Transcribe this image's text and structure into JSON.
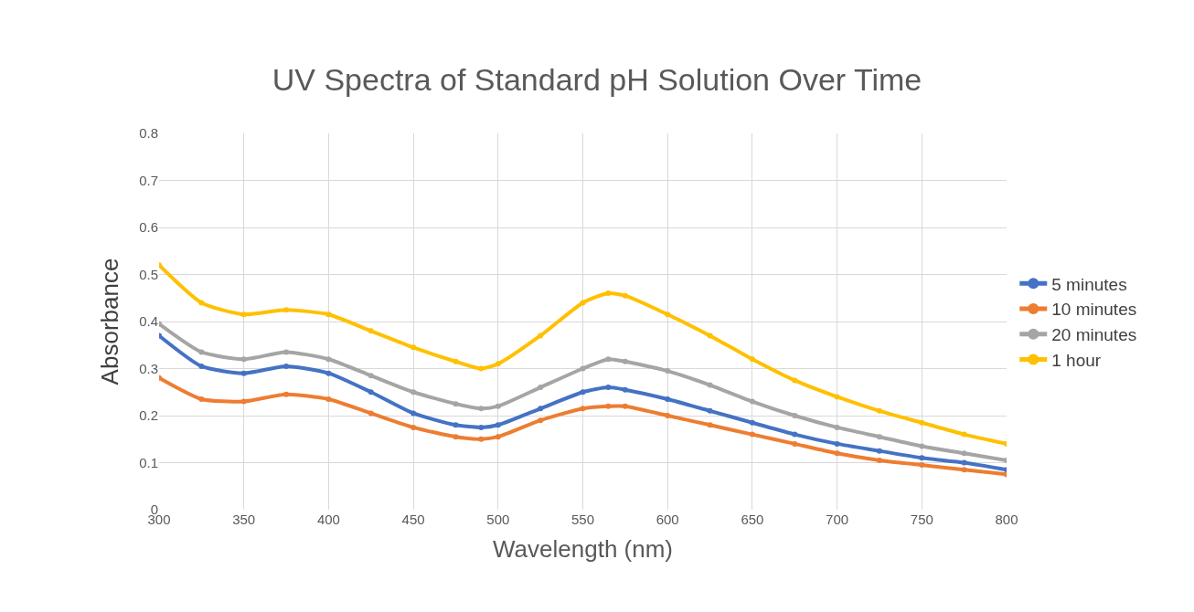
{
  "chart_data": {
    "type": "line",
    "title": "UV Spectra of Standard pH Solution Over Time",
    "xlabel": "Wavelength (nm)",
    "ylabel": "Absorbance",
    "x": [
      300,
      325,
      350,
      375,
      400,
      425,
      450,
      475,
      490,
      500,
      525,
      550,
      565,
      575,
      600,
      625,
      650,
      675,
      700,
      725,
      750,
      775,
      800
    ],
    "series": [
      {
        "name": "5 minutes",
        "color": "#4472c4",
        "values": [
          0.37,
          0.305,
          0.29,
          0.305,
          0.29,
          0.25,
          0.205,
          0.18,
          0.175,
          0.18,
          0.215,
          0.25,
          0.26,
          0.255,
          0.235,
          0.21,
          0.185,
          0.16,
          0.14,
          0.125,
          0.11,
          0.1,
          0.085
        ]
      },
      {
        "name": "10 minutes",
        "color": "#ed7d31",
        "values": [
          0.28,
          0.235,
          0.23,
          0.245,
          0.235,
          0.205,
          0.175,
          0.155,
          0.15,
          0.155,
          0.19,
          0.215,
          0.22,
          0.22,
          0.2,
          0.18,
          0.16,
          0.14,
          0.12,
          0.105,
          0.095,
          0.085,
          0.075
        ]
      },
      {
        "name": "20 minutes",
        "color": "#a5a5a5",
        "values": [
          0.395,
          0.335,
          0.32,
          0.335,
          0.32,
          0.285,
          0.25,
          0.225,
          0.215,
          0.22,
          0.26,
          0.3,
          0.32,
          0.315,
          0.295,
          0.265,
          0.23,
          0.2,
          0.175,
          0.155,
          0.135,
          0.12,
          0.105
        ]
      },
      {
        "name": "1 hour",
        "color": "#ffc000",
        "values": [
          0.52,
          0.44,
          0.415,
          0.425,
          0.415,
          0.38,
          0.345,
          0.315,
          0.3,
          0.31,
          0.37,
          0.44,
          0.46,
          0.455,
          0.415,
          0.37,
          0.32,
          0.275,
          0.24,
          0.21,
          0.185,
          0.16,
          0.14
        ]
      }
    ],
    "xlim": [
      300,
      800
    ],
    "xticks": [
      300,
      350,
      400,
      450,
      500,
      550,
      600,
      650,
      700,
      750,
      800
    ],
    "ylim": [
      0,
      0.8
    ],
    "yticks": [
      0,
      0.1,
      0.2,
      0.3,
      0.4,
      0.5,
      0.6,
      0.7,
      0.8
    ],
    "grid": true,
    "legend": "right",
    "marker": "circle"
  }
}
